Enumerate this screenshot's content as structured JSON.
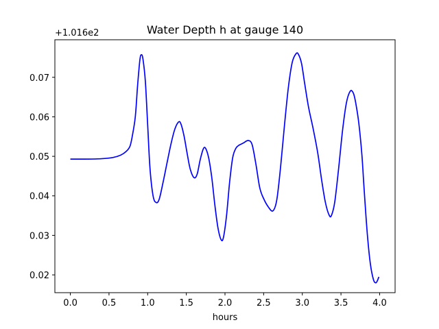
{
  "chart_data": {
    "type": "line",
    "title": "Water Depth h at gauge 140",
    "xlabel": "hours",
    "ylabel": "",
    "offset_label": "+1.016e2",
    "xlim": [
      -0.2,
      4.2
    ],
    "ylim": [
      0.0155,
      0.0795
    ],
    "xticks": [
      0.0,
      0.5,
      1.0,
      1.5,
      2.0,
      2.5,
      3.0,
      3.5,
      4.0
    ],
    "xtick_labels": [
      "0.0",
      "0.5",
      "1.0",
      "1.5",
      "2.0",
      "2.5",
      "3.0",
      "3.5",
      "4.0"
    ],
    "yticks": [
      0.02,
      0.03,
      0.04,
      0.05,
      0.06,
      0.07
    ],
    "ytick_labels": [
      "0.02",
      "0.03",
      "0.04",
      "0.05",
      "0.06",
      "0.07"
    ],
    "grid": false,
    "series": [
      {
        "color": "#0000ff",
        "x": [
          0.0,
          0.2,
          0.4,
          0.55,
          0.65,
          0.72,
          0.77,
          0.8,
          0.84,
          0.87,
          0.9,
          0.92,
          0.94,
          0.97,
          1.0,
          1.03,
          1.07,
          1.11,
          1.15,
          1.2,
          1.25,
          1.3,
          1.35,
          1.4,
          1.43,
          1.47,
          1.51,
          1.55,
          1.6,
          1.64,
          1.68,
          1.72,
          1.75,
          1.79,
          1.83,
          1.87,
          1.91,
          1.95,
          1.98,
          2.02,
          2.06,
          2.1,
          2.14,
          2.18,
          2.2,
          2.24,
          2.3,
          2.35,
          2.4,
          2.45,
          2.5,
          2.56,
          2.62,
          2.67,
          2.72,
          2.77,
          2.82,
          2.87,
          2.92,
          2.95,
          2.99,
          3.03,
          3.08,
          3.14,
          3.2,
          3.25,
          3.3,
          3.35,
          3.38,
          3.42,
          3.47,
          3.52,
          3.57,
          3.62,
          3.66,
          3.69,
          3.73,
          3.77,
          3.8,
          3.84,
          3.88,
          3.92,
          3.95,
          3.97,
          3.99
        ],
        "y": [
          0.0493,
          0.0493,
          0.0494,
          0.0497,
          0.0503,
          0.0512,
          0.0525,
          0.055,
          0.06,
          0.068,
          0.0745,
          0.0757,
          0.0745,
          0.069,
          0.058,
          0.047,
          0.04,
          0.0383,
          0.0392,
          0.0435,
          0.0483,
          0.053,
          0.0568,
          0.0587,
          0.0582,
          0.0552,
          0.0508,
          0.0468,
          0.0446,
          0.0455,
          0.0492,
          0.0519,
          0.052,
          0.0495,
          0.0445,
          0.0375,
          0.0318,
          0.0289,
          0.0295,
          0.035,
          0.0435,
          0.0497,
          0.052,
          0.0528,
          0.053,
          0.0534,
          0.054,
          0.053,
          0.048,
          0.042,
          0.0393,
          0.0372,
          0.0362,
          0.039,
          0.0475,
          0.058,
          0.0675,
          0.0738,
          0.076,
          0.0758,
          0.0735,
          0.0685,
          0.0625,
          0.057,
          0.0508,
          0.044,
          0.0382,
          0.035,
          0.0352,
          0.0385,
          0.047,
          0.0565,
          0.0635,
          0.0665,
          0.066,
          0.0636,
          0.0585,
          0.0505,
          0.0415,
          0.0305,
          0.0228,
          0.0188,
          0.018,
          0.0185,
          0.0195
        ]
      }
    ]
  }
}
